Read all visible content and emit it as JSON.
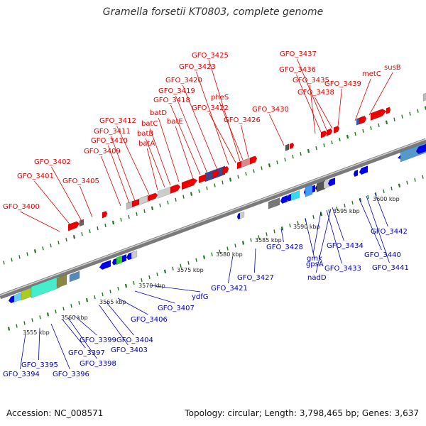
{
  "title": "Gramella forsetii KT0803, complete genome",
  "footer": {
    "accession": "Accession: NC_008571",
    "summary": "Topology: circular; Length: 3,798,465 bp; Genes: 3,637"
  },
  "colors": {
    "forward_label": "#dd0000",
    "reverse_label": "#0000bb",
    "backbone": "#808080",
    "tick": "#227722"
  },
  "scale_labels": [
    "3555 kbp",
    "3560 kbp",
    "3565 kbp",
    "3570 kbp",
    "3575 kbp",
    "3580 kbp",
    "3585 kbp",
    "3590 kbp",
    "3595 kbp",
    "3600 kbp"
  ],
  "forward_labels": [
    "GFO_3400",
    "GFO_3401",
    "GFO_3402",
    "GFO_3405",
    "GFO_3409",
    "GFO_3410",
    "GFO_3411",
    "GFO_3412",
    "batA",
    "batB",
    "batC",
    "batD",
    "batE",
    "GFO_3418",
    "GFO_3419",
    "GFO_3420",
    "GFO_3422",
    "GFO_3423",
    "GFO_3425",
    "pheS",
    "GFO_3426",
    "GFO_3430",
    "GFO_3435",
    "GFO_3436",
    "GFO_3437",
    "GFO_3438",
    "GFO_3439",
    "metC",
    "susB"
  ],
  "reverse_labels": [
    "GFO_3394",
    "GFO_3395",
    "GFO_3396",
    "GFO_3397",
    "GFO_3398",
    "GFO_3399",
    "GFO_3403",
    "GFO_3404",
    "GFO_3406",
    "GFO_3407",
    "ydfG",
    "GFO_3421",
    "GFO_3427",
    "GFO_3428",
    "gpsA",
    "gmk",
    "GFO_3433",
    "nadD",
    "GFO_3434",
    "GFO_3440",
    "GFO_3441",
    "GFO_3442"
  ]
}
